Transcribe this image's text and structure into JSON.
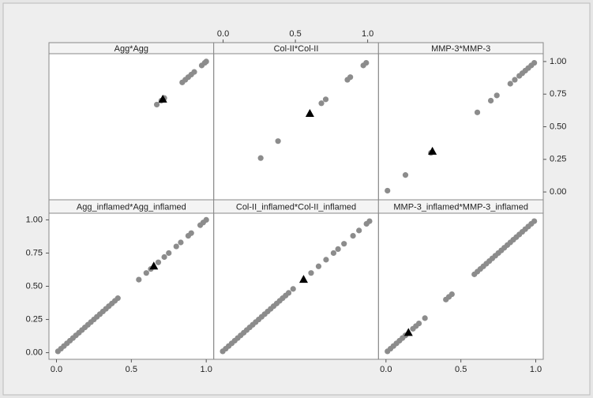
{
  "chart_data": [
    {
      "type": "scatter",
      "title": "Agg*Agg",
      "xlim": [
        -0.05,
        1.05
      ],
      "ylim": [
        -0.06,
        1.06
      ],
      "series": [
        {
          "color": "#8c8c8c",
          "marker": "circle",
          "x": [
            0.67,
            0.7,
            0.72,
            0.84,
            0.86,
            0.88,
            0.9,
            0.92,
            0.97,
            0.99,
            1.0
          ],
          "values": [
            0.67,
            0.7,
            0.72,
            0.84,
            0.86,
            0.88,
            0.9,
            0.92,
            0.97,
            0.99,
            1.0
          ]
        },
        {
          "color": "#000000",
          "marker": "triangle",
          "x": [
            0.71
          ],
          "values": [
            0.71
          ]
        }
      ]
    },
    {
      "type": "scatter",
      "title": "Col-II*Col-II",
      "xlim": [
        -0.065,
        1.075
      ],
      "ylim": [
        -0.06,
        1.06
      ],
      "xaxis": "top",
      "xticks": [
        {
          "value": 0,
          "label": "0.0"
        },
        {
          "value": 0.5,
          "label": "0.5"
        },
        {
          "value": 1,
          "label": "1.0"
        }
      ],
      "series": [
        {
          "color": "#8c8c8c",
          "marker": "circle",
          "x": [
            0.26,
            0.38,
            0.68,
            0.71,
            0.86,
            0.88,
            0.97,
            0.99
          ],
          "values": [
            0.26,
            0.39,
            0.68,
            0.71,
            0.86,
            0.88,
            0.97,
            0.99
          ]
        },
        {
          "color": "#000000",
          "marker": "triangle",
          "x": [
            0.6
          ],
          "values": [
            0.6
          ]
        }
      ]
    },
    {
      "type": "scatter",
      "title": "MMP-3*MMP-3",
      "xlim": [
        -0.05,
        1.05
      ],
      "ylim": [
        -0.06,
        1.06
      ],
      "yaxis": "right",
      "yticks": [
        {
          "value": 0,
          "label": "0.00"
        },
        {
          "value": 0.25,
          "label": "0.25"
        },
        {
          "value": 0.5,
          "label": "0.50"
        },
        {
          "value": 0.75,
          "label": "0.75"
        },
        {
          "value": 1,
          "label": "1.00"
        }
      ],
      "series": [
        {
          "color": "#8c8c8c",
          "marker": "circle",
          "x": [
            0.01,
            0.13,
            0.3,
            0.61,
            0.7,
            0.74,
            0.83,
            0.86,
            0.89,
            0.91,
            0.93,
            0.95,
            0.97,
            0.99
          ],
          "values": [
            0.01,
            0.13,
            0.3,
            0.61,
            0.7,
            0.74,
            0.83,
            0.86,
            0.89,
            0.91,
            0.93,
            0.95,
            0.97,
            0.99
          ]
        },
        {
          "color": "#000000",
          "marker": "triangle",
          "x": [
            0.31
          ],
          "values": [
            0.31
          ]
        }
      ]
    },
    {
      "type": "scatter",
      "title": "Agg_inflamed*Agg_inflamed",
      "xlim": [
        -0.05,
        1.05
      ],
      "ylim": [
        -0.05,
        1.05
      ],
      "xaxis": "bottom",
      "yaxis": "left",
      "xticks": [
        {
          "value": 0,
          "label": "0.0"
        },
        {
          "value": 0.5,
          "label": "0.5"
        },
        {
          "value": 1,
          "label": "1.0"
        }
      ],
      "yticks": [
        {
          "value": 0,
          "label": "0.00"
        },
        {
          "value": 0.25,
          "label": "0.25"
        },
        {
          "value": 0.5,
          "label": "0.50"
        },
        {
          "value": 0.75,
          "label": "0.75"
        },
        {
          "value": 1,
          "label": "1.00"
        }
      ],
      "series": [
        {
          "color": "#8c8c8c",
          "marker": "circle",
          "x": [
            0.01,
            0.03,
            0.05,
            0.07,
            0.09,
            0.11,
            0.13,
            0.15,
            0.17,
            0.19,
            0.21,
            0.23,
            0.25,
            0.27,
            0.29,
            0.31,
            0.33,
            0.35,
            0.37,
            0.39,
            0.41,
            0.55,
            0.6,
            0.63,
            0.68,
            0.72,
            0.75,
            0.8,
            0.83,
            0.88,
            0.9,
            0.96,
            0.98,
            1.0
          ],
          "values": [
            0.01,
            0.03,
            0.05,
            0.07,
            0.09,
            0.11,
            0.13,
            0.15,
            0.17,
            0.19,
            0.21,
            0.23,
            0.25,
            0.27,
            0.29,
            0.31,
            0.33,
            0.35,
            0.37,
            0.39,
            0.41,
            0.55,
            0.6,
            0.63,
            0.68,
            0.72,
            0.75,
            0.8,
            0.83,
            0.88,
            0.9,
            0.96,
            0.98,
            1.0
          ]
        },
        {
          "color": "#000000",
          "marker": "triangle",
          "x": [
            0.65
          ],
          "values": [
            0.65
          ]
        }
      ]
    },
    {
      "type": "scatter",
      "title": "Col-II_inflamed*Col-II_inflamed",
      "xlim": [
        -0.05,
        1.05
      ],
      "ylim": [
        -0.05,
        1.05
      ],
      "series": [
        {
          "color": "#8c8c8c",
          "marker": "circle",
          "x": [
            0.01,
            0.03,
            0.05,
            0.07,
            0.09,
            0.11,
            0.13,
            0.15,
            0.17,
            0.19,
            0.21,
            0.23,
            0.25,
            0.27,
            0.29,
            0.31,
            0.33,
            0.35,
            0.37,
            0.39,
            0.41,
            0.43,
            0.45,
            0.48,
            0.6,
            0.65,
            0.7,
            0.75,
            0.78,
            0.82,
            0.88,
            0.92,
            0.97,
            0.99
          ],
          "values": [
            0.01,
            0.03,
            0.05,
            0.07,
            0.09,
            0.11,
            0.13,
            0.15,
            0.17,
            0.19,
            0.21,
            0.23,
            0.25,
            0.27,
            0.29,
            0.31,
            0.33,
            0.35,
            0.37,
            0.39,
            0.41,
            0.43,
            0.45,
            0.48,
            0.6,
            0.65,
            0.7,
            0.75,
            0.78,
            0.82,
            0.88,
            0.92,
            0.97,
            0.99
          ]
        },
        {
          "color": "#000000",
          "marker": "triangle",
          "x": [
            0.55
          ],
          "values": [
            0.55
          ]
        }
      ]
    },
    {
      "type": "scatter",
      "title": "MMP-3_inflamed*MMP-3_inflamed",
      "xlim": [
        -0.05,
        1.05
      ],
      "ylim": [
        -0.05,
        1.05
      ],
      "xaxis": "bottom",
      "xticks": [
        {
          "value": 0,
          "label": "0.0"
        },
        {
          "value": 0.5,
          "label": "0.5"
        },
        {
          "value": 1,
          "label": "1.0"
        }
      ],
      "series": [
        {
          "color": "#8c8c8c",
          "marker": "circle",
          "x": [
            0.01,
            0.03,
            0.05,
            0.07,
            0.09,
            0.11,
            0.13,
            0.18,
            0.2,
            0.22,
            0.26,
            0.4,
            0.42,
            0.44,
            0.59,
            0.61,
            0.63,
            0.65,
            0.67,
            0.69,
            0.71,
            0.73,
            0.75,
            0.77,
            0.79,
            0.81,
            0.83,
            0.85,
            0.87,
            0.89,
            0.91,
            0.93,
            0.95,
            0.97,
            0.99
          ],
          "values": [
            0.01,
            0.03,
            0.05,
            0.07,
            0.09,
            0.11,
            0.13,
            0.18,
            0.2,
            0.22,
            0.26,
            0.4,
            0.42,
            0.44,
            0.59,
            0.61,
            0.63,
            0.65,
            0.67,
            0.69,
            0.71,
            0.73,
            0.75,
            0.77,
            0.79,
            0.81,
            0.83,
            0.85,
            0.87,
            0.89,
            0.91,
            0.93,
            0.95,
            0.97,
            0.99
          ]
        },
        {
          "color": "#000000",
          "marker": "triangle",
          "x": [
            0.15
          ],
          "values": [
            0.15
          ]
        }
      ]
    }
  ]
}
